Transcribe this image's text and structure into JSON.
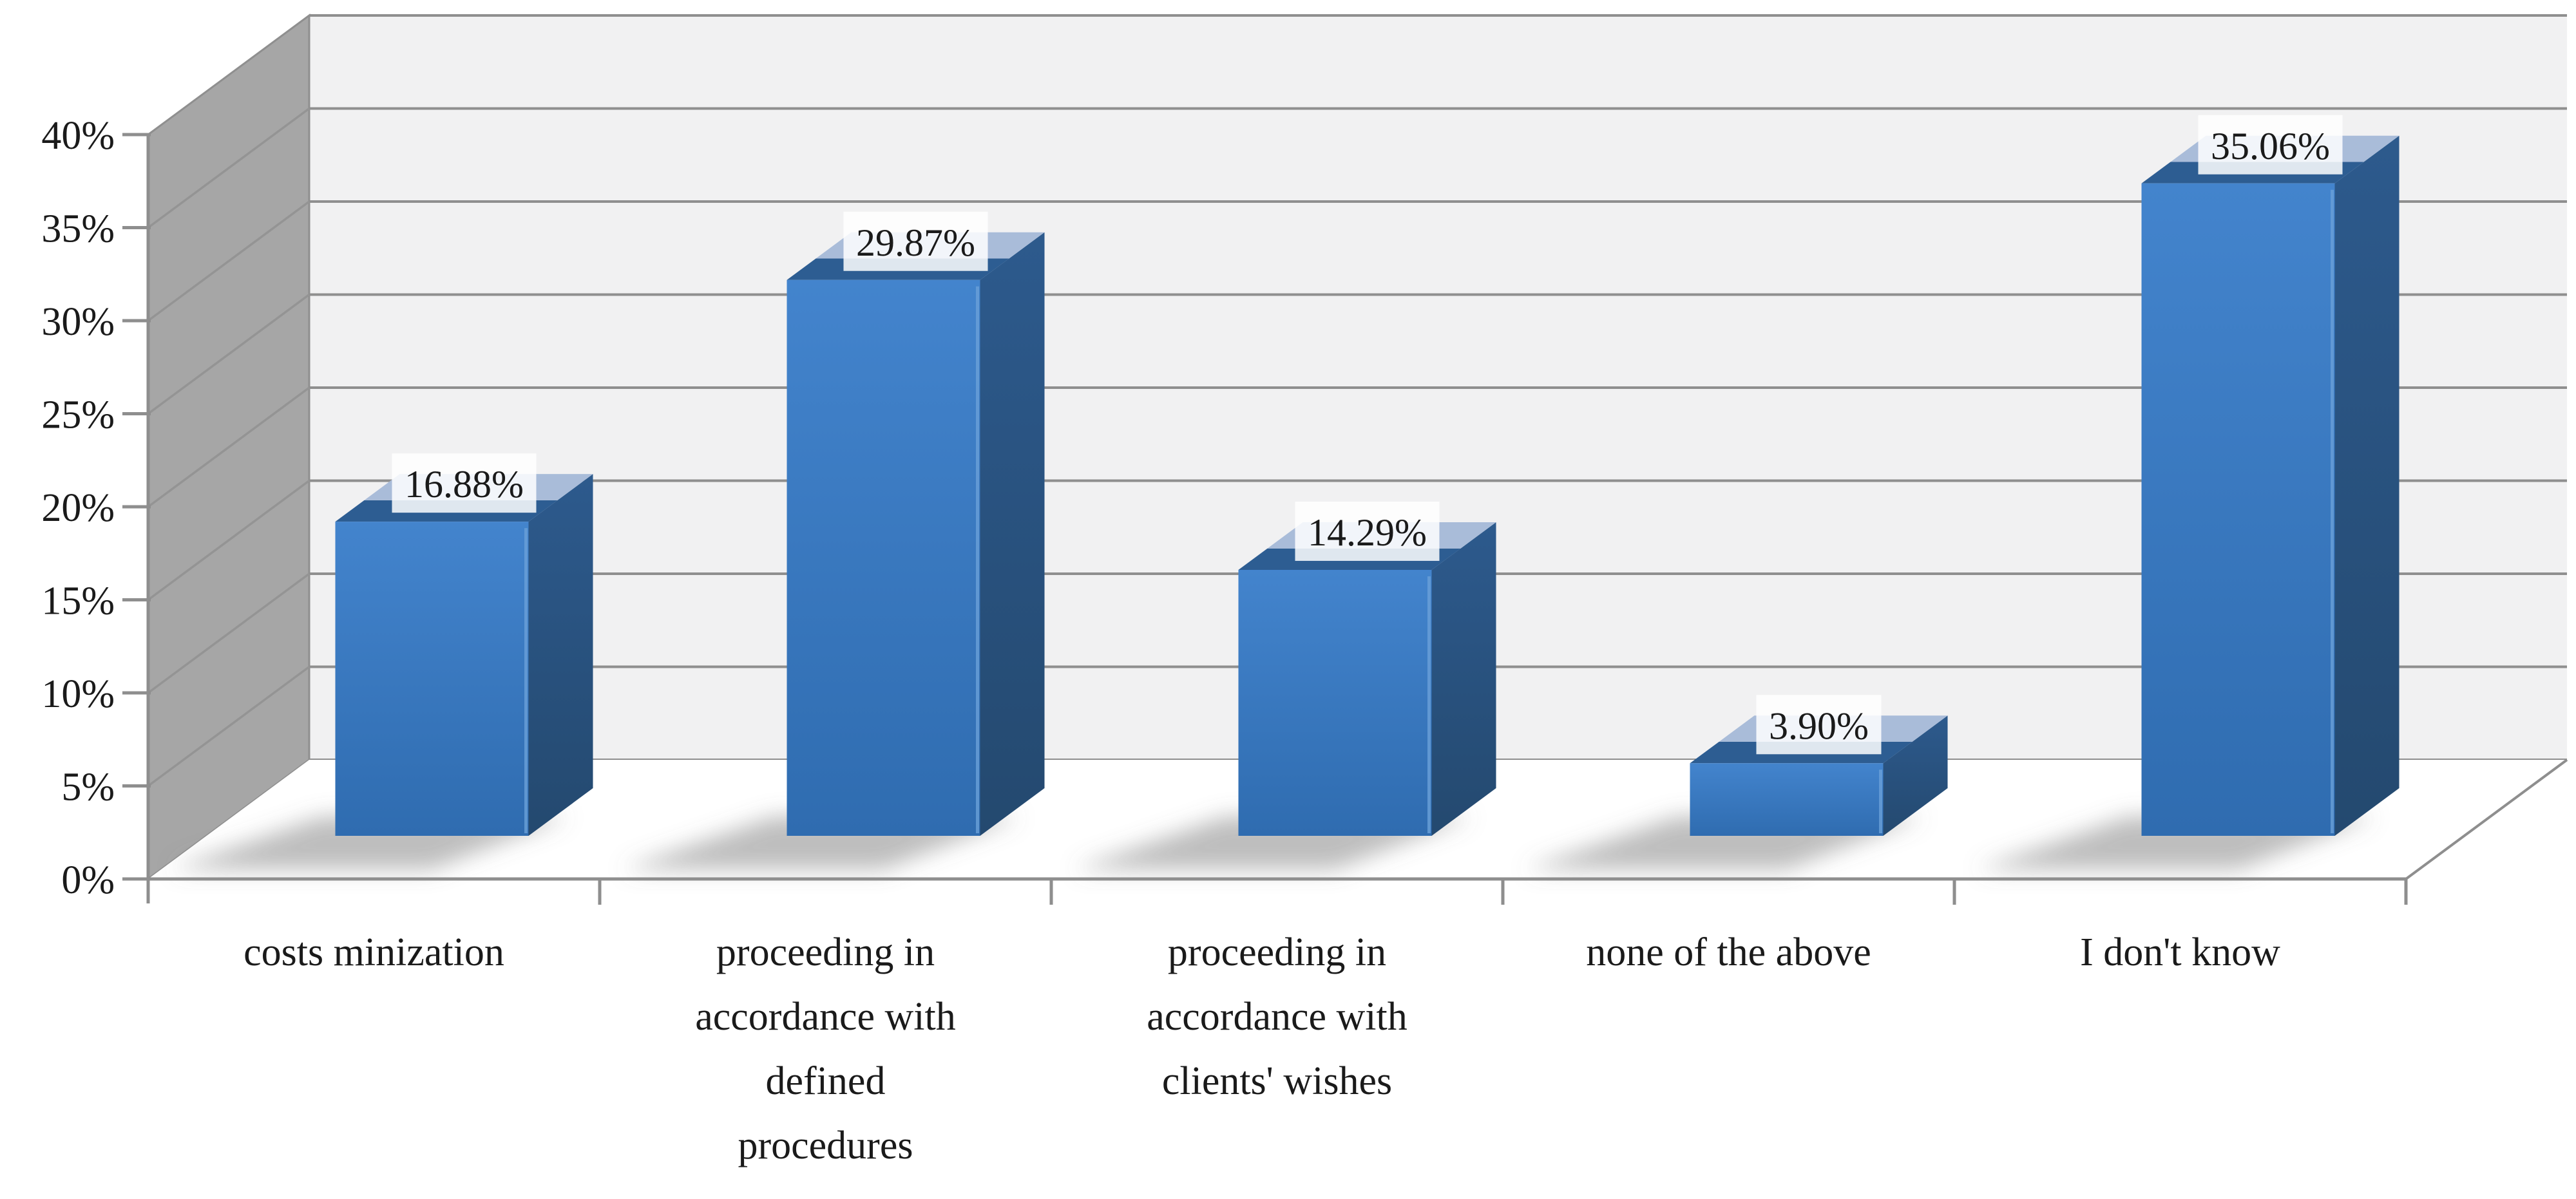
{
  "figure": {
    "kind": "3d-column-survey-figure",
    "background": "#ffffff"
  },
  "chart_data": {
    "type": "bar",
    "projection": "3d-column",
    "title": "",
    "xlabel": "",
    "ylabel": "",
    "categories": [
      "costs minization",
      "proceeding in accordance with defined procedures",
      "proceeding in accordance with clients' wishes",
      "none of the above",
      "I don't know"
    ],
    "category_lines": [
      [
        "costs minization"
      ],
      [
        "proceeding in",
        "accordance with",
        "defined",
        "procedures"
      ],
      [
        "proceeding in",
        "accordance with",
        "clients' wishes"
      ],
      [
        "none of the above"
      ],
      [
        "I don't know"
      ]
    ],
    "values": [
      16.88,
      29.87,
      14.29,
      3.9,
      35.06
    ],
    "data_labels": [
      "16.88%",
      "29.87%",
      "14.29%",
      "3.90%",
      "35.06%"
    ],
    "ylim": [
      0,
      40
    ],
    "ytick_step": 5,
    "ytick_labels": [
      "0%",
      "5%",
      "10%",
      "15%",
      "20%",
      "25%",
      "30%",
      "35%",
      "40%"
    ],
    "grid": true,
    "legend": false,
    "colors": {
      "bar_front_top": "#4384cd",
      "bar_front_bottom": "#2f6cb0",
      "bar_side_top": "#2d5a8d",
      "bar_side_bottom": "#24496f",
      "bar_top_light": "#a9bcd9",
      "bar_bevel": "#2d5d92",
      "bar_edge_highlight": "#6aa0d8",
      "wall_side": "#a6a6a6",
      "wall_side_line": "#949494",
      "wall_back": "#f1f1f2",
      "gridline": "#8f8f8f",
      "axis_line": "#8e8e8e",
      "floor": "#ffffff",
      "shadow": "#6e6e6e",
      "label_box": "#ffffff",
      "text": "#1a1a1a"
    }
  }
}
